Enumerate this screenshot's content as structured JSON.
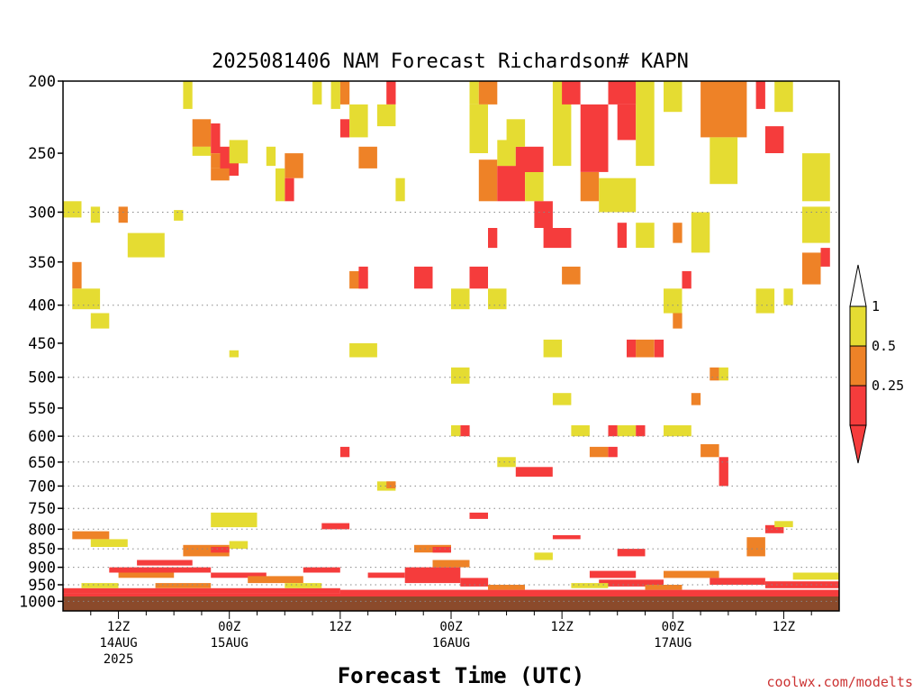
{
  "colors": {
    "ri_lt_025": "#f53c3c",
    "ri_025_05": "#ee8227",
    "ri_05_1": "#e5dc32",
    "ground": "#8b4a2b",
    "credit": "#cc3333",
    "grid": "#888888"
  },
  "chart_data": {
    "type": "heatmap",
    "title": "2025081406 NAM Forecast Richardson# KAPN",
    "xlabel": "Forecast Time (UTC)",
    "ylabel": "",
    "y_scale": "log-pressure, inverted",
    "ylim_hpa": [
      1030,
      200
    ],
    "xlim_hours_from_init": [
      0,
      84
    ],
    "x_grid_step_hours": 1,
    "y_ticks": [
      "200",
      "250",
      "300",
      "350",
      "400",
      "450",
      "500",
      "550",
      "600",
      "650",
      "700",
      "750",
      "800",
      "850",
      "900",
      "950",
      "1000"
    ],
    "dotted_gridlines_hpa": [
      300,
      400,
      500,
      600,
      650,
      700,
      750,
      800,
      850,
      900,
      950,
      1000
    ],
    "x_ticks": [
      {
        "hour": 6,
        "lines": [
          "12Z",
          "14AUG",
          "2025"
        ]
      },
      {
        "hour": 18,
        "lines": [
          "00Z",
          "15AUG"
        ]
      },
      {
        "hour": 30,
        "lines": [
          "12Z"
        ]
      },
      {
        "hour": 42,
        "lines": [
          "00Z",
          "16AUG"
        ]
      },
      {
        "hour": 54,
        "lines": [
          "12Z"
        ]
      },
      {
        "hour": 66,
        "lines": [
          "00Z",
          "17AUG"
        ]
      },
      {
        "hour": 78,
        "lines": [
          "12Z"
        ]
      }
    ],
    "legend": {
      "placement": "right",
      "labels": [
        "1",
        "0.5",
        "0.25"
      ],
      "bins": [
        "0.5-1",
        "0.25-0.5",
        "<0.25"
      ]
    },
    "ground_band_hpa": [
      1030,
      985
    ],
    "cells": [
      {
        "bin": "0.5-1",
        "x0": 13,
        "x1": 14,
        "p0": 200,
        "p1": 218
      },
      {
        "bin": "0.25-0.5",
        "x0": 14,
        "x1": 16,
        "p0": 225,
        "p1": 245
      },
      {
        "bin": "0.5-1",
        "x0": 14,
        "x1": 16,
        "p0": 245,
        "p1": 252
      },
      {
        "bin": "<0.25",
        "x0": 16,
        "x1": 17,
        "p0": 228,
        "p1": 250
      },
      {
        "bin": "0.25-0.5",
        "x0": 16,
        "x1": 17,
        "p0": 250,
        "p1": 262
      },
      {
        "bin": "<0.25",
        "x0": 17,
        "x1": 19,
        "p0": 245,
        "p1": 268
      },
      {
        "bin": "0.25-0.5",
        "x0": 16,
        "x1": 18,
        "p0": 262,
        "p1": 272
      },
      {
        "bin": "0.5-1",
        "x0": 18,
        "x1": 20,
        "p0": 240,
        "p1": 258
      },
      {
        "bin": "0.5-1",
        "x0": 22,
        "x1": 23,
        "p0": 245,
        "p1": 260
      },
      {
        "bin": "0.25-0.5",
        "x0": 24,
        "x1": 26,
        "p0": 250,
        "p1": 270
      },
      {
        "bin": "<0.25",
        "x0": 24,
        "x1": 25,
        "p0": 270,
        "p1": 290
      },
      {
        "bin": "0.5-1",
        "x0": 23,
        "x1": 24,
        "p0": 262,
        "p1": 290
      },
      {
        "bin": "0.5-1",
        "x0": 27,
        "x1": 28,
        "p0": 200,
        "p1": 215
      },
      {
        "bin": "0.5-1",
        "x0": 29,
        "x1": 30,
        "p0": 200,
        "p1": 218
      },
      {
        "bin": "0.25-0.5",
        "x0": 30,
        "x1": 31,
        "p0": 200,
        "p1": 215
      },
      {
        "bin": "<0.25",
        "x0": 30,
        "x1": 31,
        "p0": 225,
        "p1": 238
      },
      {
        "bin": "0.5-1",
        "x0": 31,
        "x1": 33,
        "p0": 215,
        "p1": 238
      },
      {
        "bin": "0.25-0.5",
        "x0": 32,
        "x1": 34,
        "p0": 245,
        "p1": 262
      },
      {
        "bin": "<0.25",
        "x0": 35,
        "x1": 36,
        "p0": 200,
        "p1": 215
      },
      {
        "bin": "0.5-1",
        "x0": 34,
        "x1": 36,
        "p0": 215,
        "p1": 230
      },
      {
        "bin": "0.5-1",
        "x0": 36,
        "x1": 37,
        "p0": 270,
        "p1": 290
      },
      {
        "bin": "0.5-1",
        "x0": 44,
        "x1": 45,
        "p0": 200,
        "p1": 215
      },
      {
        "bin": "0.25-0.5",
        "x0": 45,
        "x1": 47,
        "p0": 200,
        "p1": 215
      },
      {
        "bin": "0.5-1",
        "x0": 44,
        "x1": 46,
        "p0": 215,
        "p1": 250
      },
      {
        "bin": "0.25-0.5",
        "x0": 45,
        "x1": 47,
        "p0": 255,
        "p1": 290
      },
      {
        "bin": "<0.25",
        "x0": 47,
        "x1": 50,
        "p0": 260,
        "p1": 290
      },
      {
        "bin": "0.5-1",
        "x0": 47,
        "x1": 49,
        "p0": 240,
        "p1": 260
      },
      {
        "bin": "<0.25",
        "x0": 49,
        "x1": 52,
        "p0": 245,
        "p1": 265
      },
      {
        "bin": "0.5-1",
        "x0": 48,
        "x1": 50,
        "p0": 225,
        "p1": 245
      },
      {
        "bin": "0.5-1",
        "x0": 50,
        "x1": 52,
        "p0": 265,
        "p1": 290
      },
      {
        "bin": "<0.25",
        "x0": 51,
        "x1": 53,
        "p0": 290,
        "p1": 315
      },
      {
        "bin": "0.5-1",
        "x0": 53,
        "x1": 55,
        "p0": 200,
        "p1": 260
      },
      {
        "bin": "<0.25",
        "x0": 54,
        "x1": 56,
        "p0": 200,
        "p1": 215
      },
      {
        "bin": "<0.25",
        "x0": 56,
        "x1": 59,
        "p0": 215,
        "p1": 265
      },
      {
        "bin": "0.25-0.5",
        "x0": 56,
        "x1": 58,
        "p0": 265,
        "p1": 290
      },
      {
        "bin": "0.5-1",
        "x0": 58,
        "x1": 62,
        "p0": 270,
        "p1": 300
      },
      {
        "bin": "<0.25",
        "x0": 59,
        "x1": 62,
        "p0": 200,
        "p1": 215
      },
      {
        "bin": "<0.25",
        "x0": 60,
        "x1": 62,
        "p0": 215,
        "p1": 240
      },
      {
        "bin": "0.5-1",
        "x0": 62,
        "x1": 64,
        "p0": 200,
        "p1": 260
      },
      {
        "bin": "0.5-1",
        "x0": 65,
        "x1": 67,
        "p0": 200,
        "p1": 220
      },
      {
        "bin": "0.25-0.5",
        "x0": 69,
        "x1": 74,
        "p0": 200,
        "p1": 238
      },
      {
        "bin": "0.5-1",
        "x0": 70,
        "x1": 73,
        "p0": 238,
        "p1": 275
      },
      {
        "bin": "<0.25",
        "x0": 75,
        "x1": 76,
        "p0": 200,
        "p1": 218
      },
      {
        "bin": "0.5-1",
        "x0": 77,
        "x1": 79,
        "p0": 200,
        "p1": 220
      },
      {
        "bin": "<0.25",
        "x0": 76,
        "x1": 78,
        "p0": 230,
        "p1": 250
      },
      {
        "bin": "0.5-1",
        "x0": 80,
        "x1": 83,
        "p0": 250,
        "p1": 290
      },
      {
        "bin": "0.5-1",
        "x0": 80,
        "x1": 83,
        "p0": 295,
        "p1": 330
      },
      {
        "bin": "0.25-0.5",
        "x0": 80,
        "x1": 82,
        "p0": 340,
        "p1": 375
      },
      {
        "bin": "<0.25",
        "x0": 82,
        "x1": 83,
        "p0": 335,
        "p1": 355
      },
      {
        "bin": "0.5-1",
        "x0": 0,
        "x1": 2,
        "p0": 290,
        "p1": 305
      },
      {
        "bin": "0.5-1",
        "x0": 3,
        "x1": 4,
        "p0": 295,
        "p1": 310
      },
      {
        "bin": "0.25-0.5",
        "x0": 6,
        "x1": 7,
        "p0": 295,
        "p1": 310
      },
      {
        "bin": "0.5-1",
        "x0": 7,
        "x1": 11,
        "p0": 320,
        "p1": 345
      },
      {
        "bin": "0.5-1",
        "x0": 12,
        "x1": 13,
        "p0": 298,
        "p1": 308
      },
      {
        "bin": "0.25-0.5",
        "x0": 1,
        "x1": 2,
        "p0": 350,
        "p1": 380
      },
      {
        "bin": "0.5-1",
        "x0": 1,
        "x1": 4,
        "p0": 380,
        "p1": 405
      },
      {
        "bin": "0.5-1",
        "x0": 3,
        "x1": 5,
        "p0": 410,
        "p1": 430
      },
      {
        "bin": "0.25-0.5",
        "x0": 31,
        "x1": 33,
        "p0": 360,
        "p1": 380
      },
      {
        "bin": "<0.25",
        "x0": 32,
        "x1": 33,
        "p0": 355,
        "p1": 380
      },
      {
        "bin": "<0.25",
        "x0": 38,
        "x1": 40,
        "p0": 355,
        "p1": 380
      },
      {
        "bin": "0.5-1",
        "x0": 42,
        "x1": 44,
        "p0": 380,
        "p1": 405
      },
      {
        "bin": "<0.25",
        "x0": 44,
        "x1": 46,
        "p0": 355,
        "p1": 380
      },
      {
        "bin": "0.5-1",
        "x0": 46,
        "x1": 48,
        "p0": 380,
        "p1": 405
      },
      {
        "bin": "<0.25",
        "x0": 46,
        "x1": 47,
        "p0": 315,
        "p1": 335
      },
      {
        "bin": "<0.25",
        "x0": 52,
        "x1": 55,
        "p0": 315,
        "p1": 335
      },
      {
        "bin": "0.25-0.5",
        "x0": 54,
        "x1": 56,
        "p0": 355,
        "p1": 375
      },
      {
        "bin": "<0.25",
        "x0": 60,
        "x1": 61,
        "p0": 310,
        "p1": 335
      },
      {
        "bin": "0.5-1",
        "x0": 62,
        "x1": 64,
        "p0": 310,
        "p1": 335
      },
      {
        "bin": "0.25-0.5",
        "x0": 66,
        "x1": 67,
        "p0": 310,
        "p1": 330
      },
      {
        "bin": "0.5-1",
        "x0": 68,
        "x1": 70,
        "p0": 300,
        "p1": 340
      },
      {
        "bin": "<0.25",
        "x0": 67,
        "x1": 68,
        "p0": 360,
        "p1": 380
      },
      {
        "bin": "0.5-1",
        "x0": 65,
        "x1": 67,
        "p0": 380,
        "p1": 410
      },
      {
        "bin": "0.25-0.5",
        "x0": 66,
        "x1": 67,
        "p0": 410,
        "p1": 430
      },
      {
        "bin": "0.5-1",
        "x0": 75,
        "x1": 77,
        "p0": 380,
        "p1": 410
      },
      {
        "bin": "0.5-1",
        "x0": 78,
        "x1": 79,
        "p0": 380,
        "p1": 400
      },
      {
        "bin": "0.5-1",
        "x0": 31,
        "x1": 34,
        "p0": 450,
        "p1": 470
      },
      {
        "bin": "0.5-1",
        "x0": 18,
        "x1": 19,
        "p0": 460,
        "p1": 470
      },
      {
        "bin": "0.5-1",
        "x0": 52,
        "x1": 54,
        "p0": 445,
        "p1": 470
      },
      {
        "bin": "<0.25",
        "x0": 61,
        "x1": 62,
        "p0": 445,
        "p1": 470
      },
      {
        "bin": "0.25-0.5",
        "x0": 62,
        "x1": 64,
        "p0": 445,
        "p1": 470
      },
      {
        "bin": "<0.25",
        "x0": 64,
        "x1": 65,
        "p0": 445,
        "p1": 470
      },
      {
        "bin": "0.5-1",
        "x0": 42,
        "x1": 44,
        "p0": 485,
        "p1": 510
      },
      {
        "bin": "0.25-0.5",
        "x0": 70,
        "x1": 71,
        "p0": 485,
        "p1": 505
      },
      {
        "bin": "0.5-1",
        "x0": 71,
        "x1": 72,
        "p0": 485,
        "p1": 505
      },
      {
        "bin": "0.5-1",
        "x0": 53,
        "x1": 55,
        "p0": 525,
        "p1": 545
      },
      {
        "bin": "0.25-0.5",
        "x0": 68,
        "x1": 69,
        "p0": 525,
        "p1": 545
      },
      {
        "bin": "0.5-1",
        "x0": 55,
        "x1": 57,
        "p0": 580,
        "p1": 600
      },
      {
        "bin": "<0.25",
        "x0": 43,
        "x1": 44,
        "p0": 580,
        "p1": 600
      },
      {
        "bin": "0.5-1",
        "x0": 42,
        "x1": 43,
        "p0": 580,
        "p1": 600
      },
      {
        "bin": "<0.25",
        "x0": 59,
        "x1": 60,
        "p0": 580,
        "p1": 600
      },
      {
        "bin": "0.5-1",
        "x0": 60,
        "x1": 62,
        "p0": 580,
        "p1": 600
      },
      {
        "bin": "<0.25",
        "x0": 62,
        "x1": 63,
        "p0": 580,
        "p1": 600
      },
      {
        "bin": "0.5-1",
        "x0": 65,
        "x1": 68,
        "p0": 580,
        "p1": 600
      },
      {
        "bin": "0.25-0.5",
        "x0": 57,
        "x1": 59,
        "p0": 620,
        "p1": 640
      },
      {
        "bin": "<0.25",
        "x0": 59,
        "x1": 60,
        "p0": 620,
        "p1": 640
      },
      {
        "bin": "0.25-0.5",
        "x0": 69,
        "x1": 71,
        "p0": 615,
        "p1": 640
      },
      {
        "bin": "<0.25",
        "x0": 71,
        "x1": 72,
        "p0": 640,
        "p1": 700
      },
      {
        "bin": "0.5-1",
        "x0": 47,
        "x1": 49,
        "p0": 640,
        "p1": 660
      },
      {
        "bin": "<0.25",
        "x0": 49,
        "x1": 53,
        "p0": 660,
        "p1": 680
      },
      {
        "bin": "<0.25",
        "x0": 30,
        "x1": 31,
        "p0": 620,
        "p1": 640
      },
      {
        "bin": "0.5-1",
        "x0": 34,
        "x1": 36,
        "p0": 690,
        "p1": 710
      },
      {
        "bin": "0.25-0.5",
        "x0": 35,
        "x1": 36,
        "p0": 690,
        "p1": 705
      },
      {
        "bin": "0.5-1",
        "x0": 16,
        "x1": 21,
        "p0": 760,
        "p1": 795
      },
      {
        "bin": "<0.25",
        "x0": 28,
        "x1": 31,
        "p0": 785,
        "p1": 800
      },
      {
        "bin": "<0.25",
        "x0": 44,
        "x1": 46,
        "p0": 760,
        "p1": 775
      },
      {
        "bin": "<0.25",
        "x0": 53,
        "x1": 56,
        "p0": 815,
        "p1": 825
      },
      {
        "bin": "<0.25",
        "x0": 76,
        "x1": 78,
        "p0": 790,
        "p1": 810
      },
      {
        "bin": "0.5-1",
        "x0": 77,
        "x1": 79,
        "p0": 780,
        "p1": 795
      },
      {
        "bin": "0.25-0.5",
        "x0": 1,
        "x1": 5,
        "p0": 805,
        "p1": 825
      },
      {
        "bin": "0.5-1",
        "x0": 3,
        "x1": 7,
        "p0": 825,
        "p1": 845
      },
      {
        "bin": "0.25-0.5",
        "x0": 13,
        "x1": 18,
        "p0": 840,
        "p1": 870
      },
      {
        "bin": "<0.25",
        "x0": 16,
        "x1": 18,
        "p0": 845,
        "p1": 860
      },
      {
        "bin": "0.5-1",
        "x0": 18,
        "x1": 20,
        "p0": 830,
        "p1": 850
      },
      {
        "bin": "0.25-0.5",
        "x0": 38,
        "x1": 42,
        "p0": 840,
        "p1": 860
      },
      {
        "bin": "<0.25",
        "x0": 40,
        "x1": 42,
        "p0": 845,
        "p1": 860
      },
      {
        "bin": "0.5-1",
        "x0": 51,
        "x1": 53,
        "p0": 860,
        "p1": 880
      },
      {
        "bin": "<0.25",
        "x0": 60,
        "x1": 63,
        "p0": 850,
        "p1": 870
      },
      {
        "bin": "0.25-0.5",
        "x0": 74,
        "x1": 76,
        "p0": 820,
        "p1": 870
      },
      {
        "bin": "<0.25",
        "x0": 5,
        "x1": 16,
        "p0": 900,
        "p1": 915
      },
      {
        "bin": "<0.25",
        "x0": 8,
        "x1": 14,
        "p0": 880,
        "p1": 895
      },
      {
        "bin": "0.25-0.5",
        "x0": 6,
        "x1": 12,
        "p0": 915,
        "p1": 930
      },
      {
        "bin": "<0.25",
        "x0": 16,
        "x1": 22,
        "p0": 915,
        "p1": 930
      },
      {
        "bin": "0.25-0.5",
        "x0": 20,
        "x1": 26,
        "p0": 925,
        "p1": 945
      },
      {
        "bin": "<0.25",
        "x0": 26,
        "x1": 30,
        "p0": 900,
        "p1": 915
      },
      {
        "bin": "<0.25",
        "x0": 33,
        "x1": 37,
        "p0": 915,
        "p1": 930
      },
      {
        "bin": "<0.25",
        "x0": 37,
        "x1": 43,
        "p0": 900,
        "p1": 945
      },
      {
        "bin": "0.25-0.5",
        "x0": 40,
        "x1": 44,
        "p0": 880,
        "p1": 900
      },
      {
        "bin": "<0.25",
        "x0": 43,
        "x1": 46,
        "p0": 930,
        "p1": 955
      },
      {
        "bin": "<0.25",
        "x0": 57,
        "x1": 62,
        "p0": 910,
        "p1": 930
      },
      {
        "bin": "<0.25",
        "x0": 58,
        "x1": 65,
        "p0": 935,
        "p1": 955
      },
      {
        "bin": "0.25-0.5",
        "x0": 65,
        "x1": 71,
        "p0": 910,
        "p1": 930
      },
      {
        "bin": "<0.25",
        "x0": 70,
        "x1": 76,
        "p0": 930,
        "p1": 950
      },
      {
        "bin": "<0.25",
        "x0": 76,
        "x1": 84,
        "p0": 940,
        "p1": 960
      },
      {
        "bin": "0.5-1",
        "x0": 79,
        "x1": 84,
        "p0": 915,
        "p1": 935
      },
      {
        "bin": "<0.25",
        "x0": 0,
        "x1": 30,
        "p0": 960,
        "p1": 975
      },
      {
        "bin": "<0.25",
        "x0": 30,
        "x1": 84,
        "p0": 965,
        "p1": 980
      },
      {
        "bin": "<0.25",
        "x0": 0,
        "x1": 84,
        "p0": 975,
        "p1": 985
      },
      {
        "bin": "0.5-1",
        "x0": 2,
        "x1": 6,
        "p0": 945,
        "p1": 960
      },
      {
        "bin": "0.25-0.5",
        "x0": 10,
        "x1": 16,
        "p0": 945,
        "p1": 960
      },
      {
        "bin": "0.5-1",
        "x0": 24,
        "x1": 28,
        "p0": 945,
        "p1": 960
      },
      {
        "bin": "0.25-0.5",
        "x0": 46,
        "x1": 50,
        "p0": 950,
        "p1": 965
      },
      {
        "bin": "0.5-1",
        "x0": 55,
        "x1": 59,
        "p0": 945,
        "p1": 960
      },
      {
        "bin": "0.25-0.5",
        "x0": 63,
        "x1": 67,
        "p0": 950,
        "p1": 965
      }
    ]
  },
  "credit": "coolwx.com/modelts"
}
